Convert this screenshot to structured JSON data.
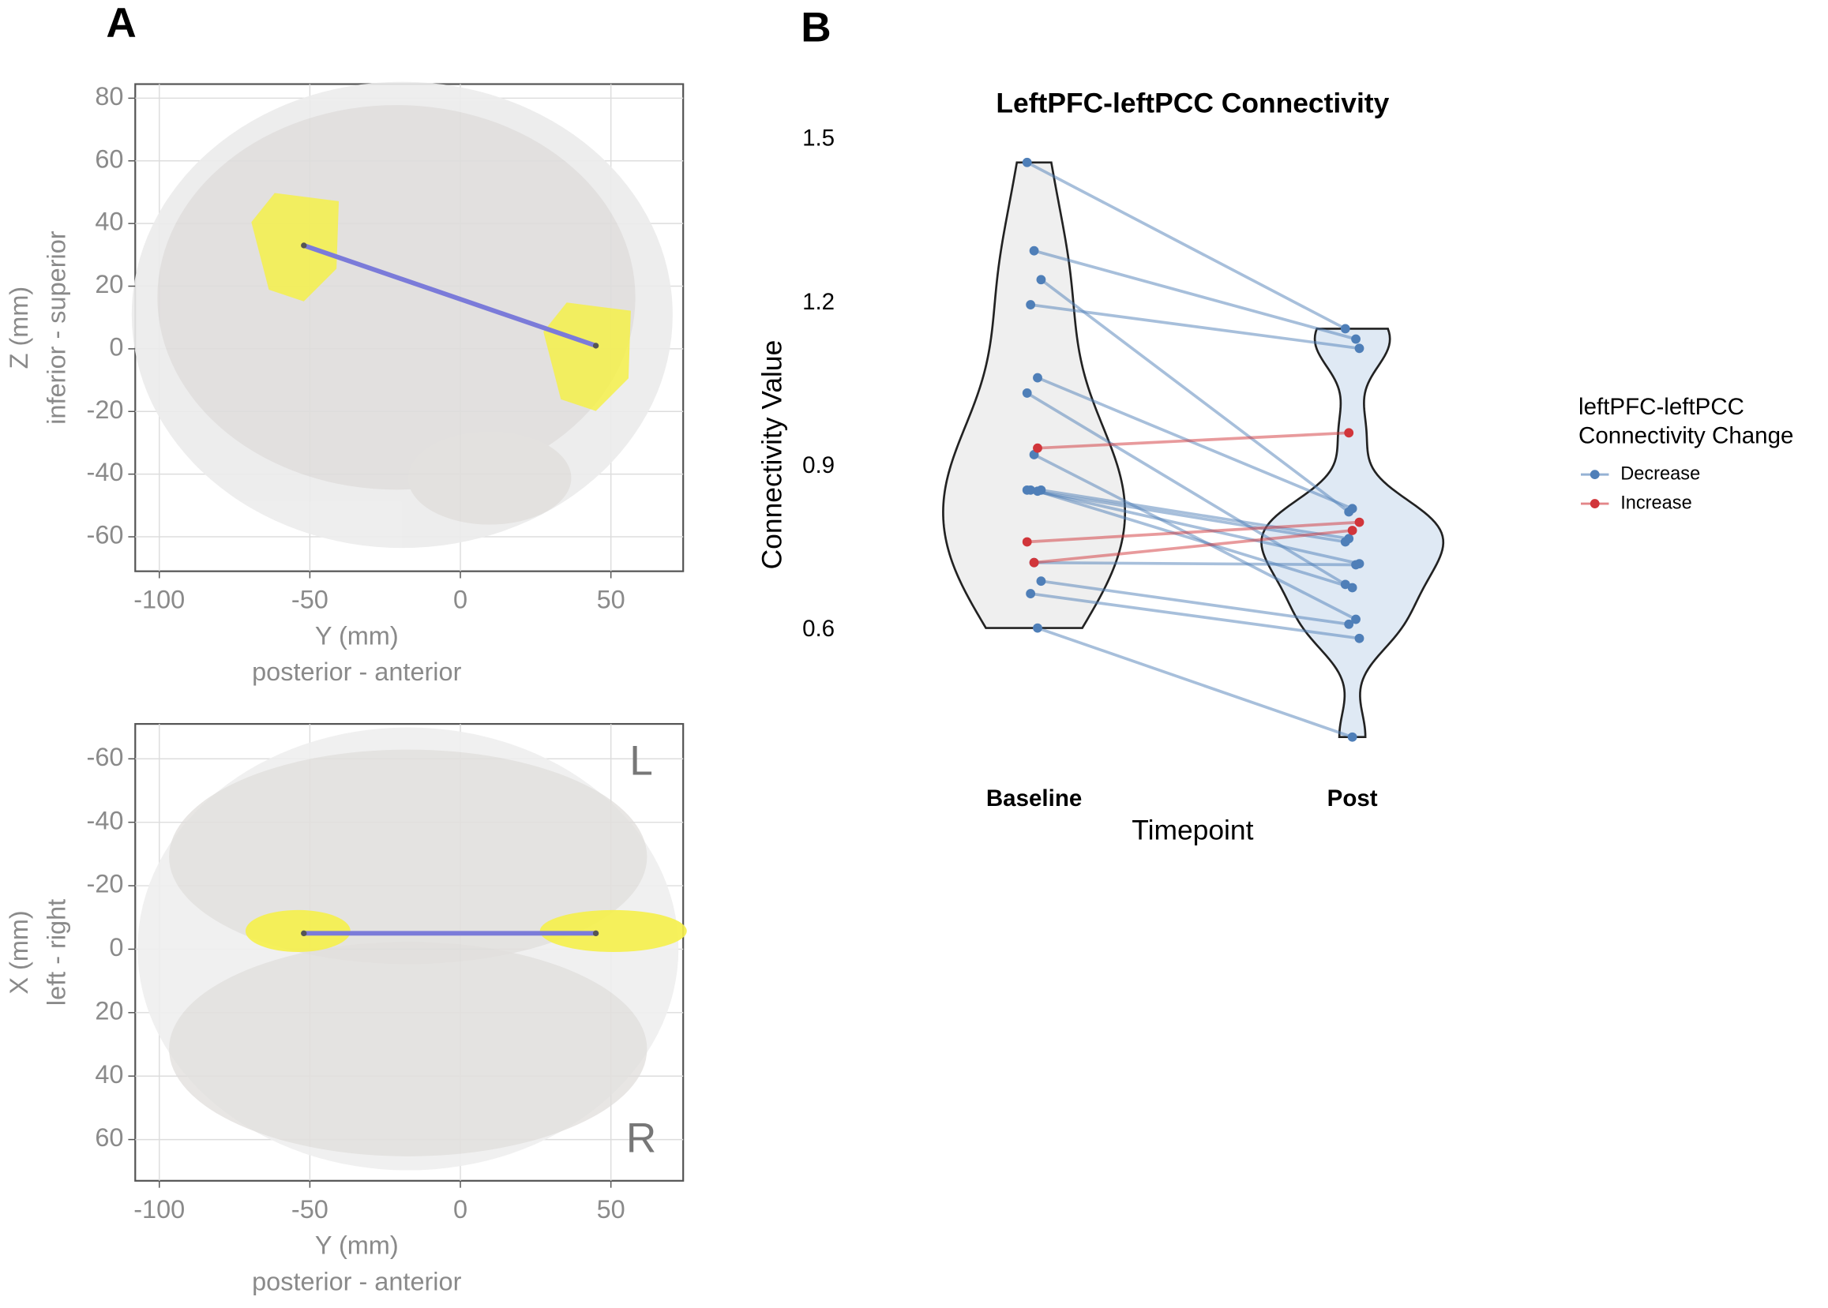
{
  "chart_data": [
    {
      "type": "connectome",
      "panel": "A",
      "xlabel": [
        "Y (mm)",
        "posterior - anterior"
      ],
      "ylabel": [
        "Z (mm)",
        "inferior - superior"
      ],
      "xlim": [
        -108,
        74
      ],
      "ylim": [
        -71,
        84.5
      ],
      "xticks": [
        -100,
        -50,
        0,
        50
      ],
      "yticks": [
        80,
        60,
        40,
        20,
        0,
        -20,
        -40,
        -60
      ],
      "grid": true,
      "series": [
        {
          "x": [
            -52,
            45
          ],
          "y": [
            33,
            1
          ],
          "color": "#7b7bd9"
        }
      ]
    },
    {
      "type": "connectome",
      "xlabel": [
        "Y (mm)",
        "posterior - anterior"
      ],
      "ylabel": [
        "X (mm)",
        "left - right"
      ],
      "xlim": [
        -108,
        74
      ],
      "ylim": [
        73,
        -71
      ],
      "xticks": [
        -100,
        -50,
        0,
        50
      ],
      "yticks": [
        -60,
        -40,
        -20,
        0,
        20,
        40,
        60
      ],
      "grid": true,
      "hemisphere_labels": [
        "L",
        "R"
      ],
      "series": [
        {
          "x": [
            -52,
            45
          ],
          "y": [
            -5,
            -5
          ],
          "color": "#7b7bd9"
        }
      ]
    },
    {
      "type": "violin",
      "panel": "B",
      "title": "LeftPFC-leftPCC Connectivity",
      "xlabel": "Timepoint",
      "ylabel": "Connectivity Value",
      "categories": [
        "Baseline",
        "Post"
      ],
      "ylim": [
        0.38,
        1.56
      ],
      "yticks": [
        0.6,
        0.9,
        1.2,
        1.5
      ],
      "legend_title": [
        "leftPFC-leftPCC",
        "Connectivity Change"
      ],
      "violin_colors": [
        "#efefef",
        "#dfe9f4"
      ],
      "series": [
        {
          "name": "Decrease",
          "color": "#4f7fb8",
          "values": [
            [
              1.458,
              1.153
            ],
            [
              1.296,
              1.134
            ],
            [
              1.243,
              0.817
            ],
            [
              1.197,
              1.117
            ],
            [
              1.063,
              0.823
            ],
            [
              1.035,
              0.684
            ],
            [
              0.922,
              0.62
            ],
            [
              0.857,
              0.768
            ],
            [
              0.857,
              0.722
            ],
            [
              0.855,
              0.678
            ],
            [
              0.857,
              0.762
            ],
            [
              0.724,
              0.72
            ],
            [
              0.69,
              0.611
            ],
            [
              0.667,
              0.585
            ],
            [
              0.604,
              0.404
            ]
          ]
        },
        {
          "name": "Increase",
          "color": "#d1353a",
          "values": [
            [
              0.934,
              0.962
            ],
            [
              0.762,
              0.798
            ],
            [
              0.724,
              0.783
            ]
          ]
        }
      ]
    }
  ]
}
